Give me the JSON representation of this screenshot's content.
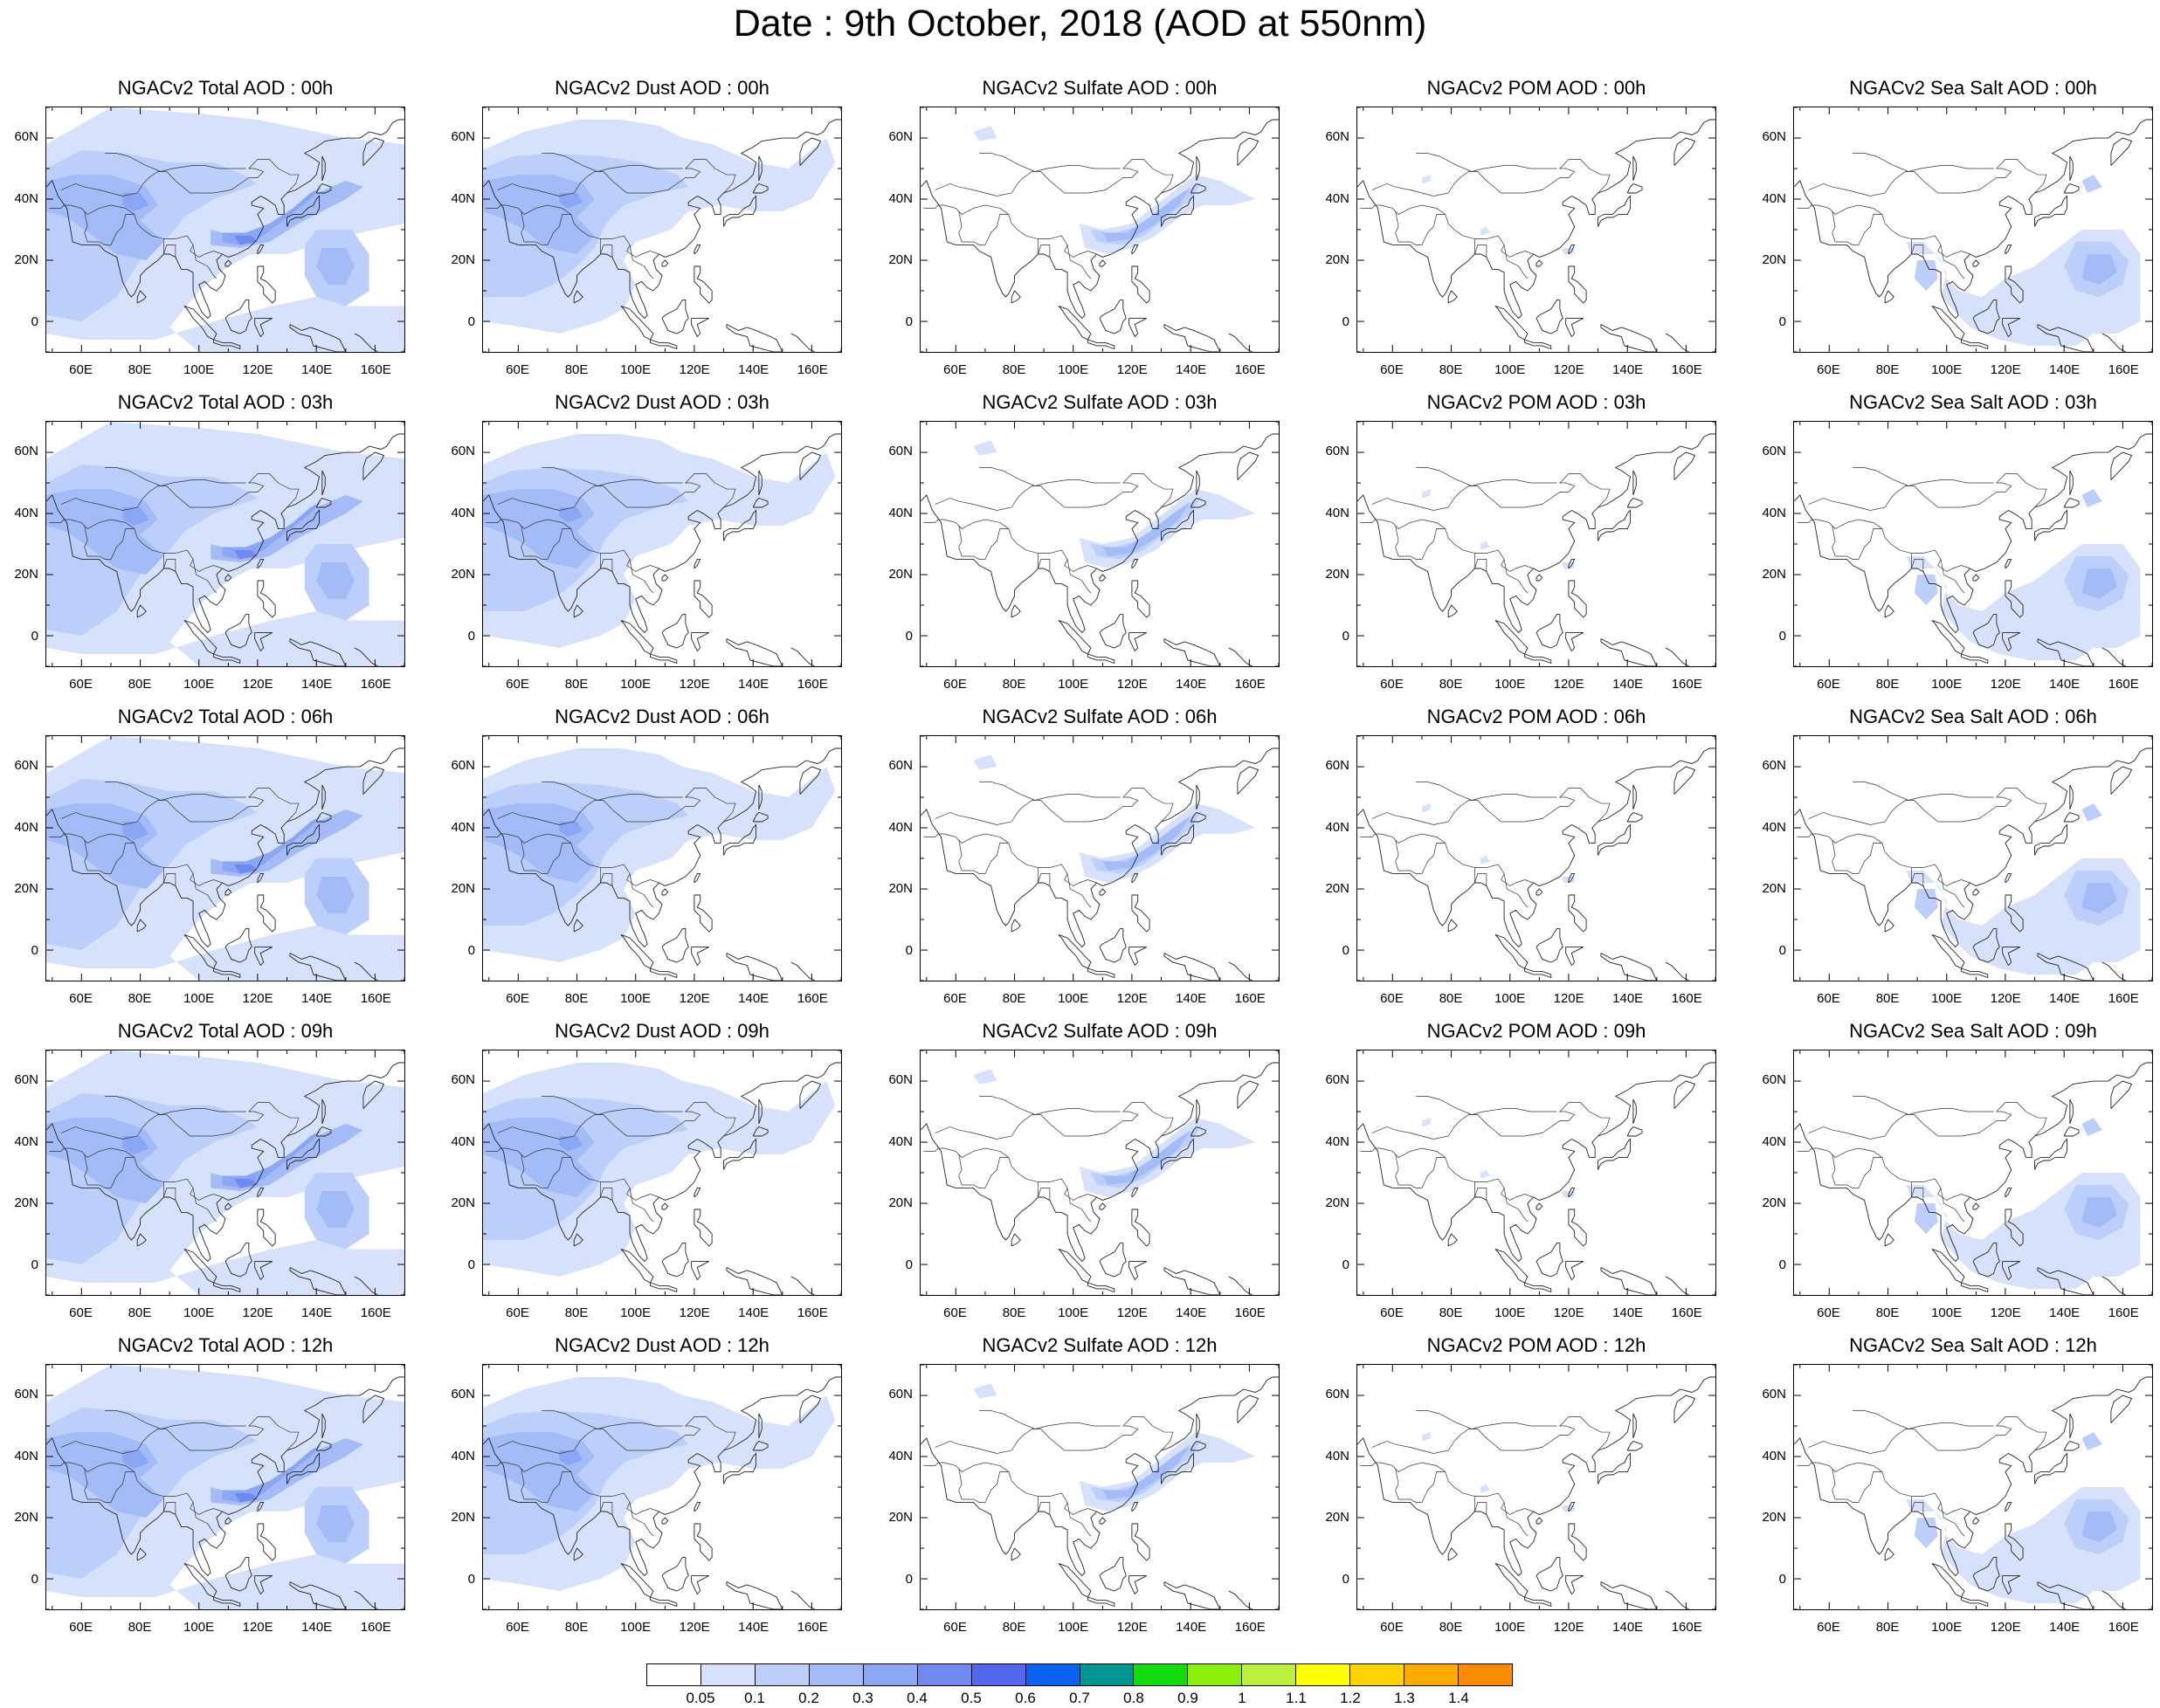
{
  "title": "Date : 9th October, 2018 (AOD at 550nm)",
  "lat_ticks": [
    "60N",
    "40N",
    "20N",
    "0"
  ],
  "lon_ticks": [
    "60E",
    "80E",
    "100E",
    "120E",
    "140E",
    "160E"
  ],
  "panels": [
    {
      "title": "NGACv2 Total AOD : 00h",
      "species": "total"
    },
    {
      "title": "NGACv2 Dust AOD : 00h",
      "species": "dust"
    },
    {
      "title": "NGACv2 Sulfate AOD : 00h",
      "species": "sulfate"
    },
    {
      "title": "NGACv2 POM AOD : 00h",
      "species": "pom"
    },
    {
      "title": "NGACv2 Sea Salt AOD : 00h",
      "species": "seasalt"
    },
    {
      "title": "NGACv2 Total AOD : 03h",
      "species": "total"
    },
    {
      "title": "NGACv2 Dust AOD : 03h",
      "species": "dust"
    },
    {
      "title": "NGACv2 Sulfate AOD : 03h",
      "species": "sulfate"
    },
    {
      "title": "NGACv2 POM AOD : 03h",
      "species": "pom"
    },
    {
      "title": "NGACv2 Sea Salt AOD : 03h",
      "species": "seasalt"
    },
    {
      "title": "NGACv2 Total AOD : 06h",
      "species": "total"
    },
    {
      "title": "NGACv2 Dust AOD : 06h",
      "species": "dust"
    },
    {
      "title": "NGACv2 Sulfate AOD : 06h",
      "species": "sulfate"
    },
    {
      "title": "NGACv2 POM AOD : 06h",
      "species": "pom"
    },
    {
      "title": "NGACv2 Sea Salt AOD : 06h",
      "species": "seasalt"
    },
    {
      "title": "NGACv2 Total AOD : 09h",
      "species": "total"
    },
    {
      "title": "NGACv2 Dust AOD : 09h",
      "species": "dust"
    },
    {
      "title": "NGACv2 Sulfate AOD : 09h",
      "species": "sulfate"
    },
    {
      "title": "NGACv2 POM AOD : 09h",
      "species": "pom"
    },
    {
      "title": "NGACv2 Sea Salt  AOD : 09h",
      "species": "seasalt"
    },
    {
      "title": "NGACv2 Total AOD  : 12h",
      "species": "total"
    },
    {
      "title": "NGACv2 Dust AOD : 12h",
      "species": "dust"
    },
    {
      "title": "NGACv2 Sulfate AOD : 12h",
      "species": "sulfate"
    },
    {
      "title": "NGACv2 POM  AOD : 12h",
      "species": "pom"
    },
    {
      "title": "NGACv2 Sea Salt  AOD : 12h",
      "species": "seasalt"
    }
  ],
  "colorbar": {
    "labels": [
      "0.05",
      "0.1",
      "0.2",
      "0.3",
      "0.4",
      "0.5",
      "0.6",
      "0.7",
      "0.8",
      "0.9",
      "1",
      "1.1",
      "1.2",
      "1.3",
      "1.4"
    ],
    "colors": [
      "#ffffff",
      "#d6e2fb",
      "#bccffa",
      "#a3bcf7",
      "#8aa6f4",
      "#6e8af0",
      "#5168ee",
      "#0a64f0",
      "#009696",
      "#12dc0e",
      "#8cf00a",
      "#bcf03c",
      "#ffff00",
      "#ffd200",
      "#ffaa00",
      "#ff8c00",
      "#ff6400",
      "#ff1e00"
    ]
  }
}
